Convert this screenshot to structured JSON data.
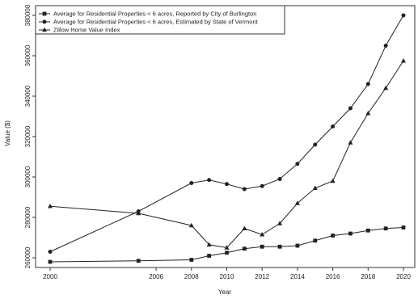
{
  "chart_data": {
    "type": "line",
    "title": "",
    "xlabel": "Year",
    "ylabel": "Value ($)",
    "xlim": [
      2000,
      2020
    ],
    "ylim": [
      260000,
      380000
    ],
    "x_ticks": [
      "2000",
      "2006",
      "2008",
      "2010",
      "2012",
      "2014",
      "2016",
      "2018",
      "2020"
    ],
    "x_tick_values": [
      2000,
      2006,
      2008,
      2010,
      2012,
      2014,
      2016,
      2018,
      2020
    ],
    "y_ticks": [
      "260000",
      "280000",
      "300000",
      "320000",
      "340000",
      "360000",
      "380000"
    ],
    "y_tick_values": [
      260000,
      280000,
      300000,
      320000,
      340000,
      360000,
      380000
    ],
    "grid": false,
    "legend_position": "top-left",
    "series": [
      {
        "name": "Average for Residential Properties < 6 acres, Reported by City of Burlington",
        "marker": "square",
        "color": "#222222",
        "x": [
          2000,
          2005,
          2008,
          2009,
          2010,
          2011,
          2012,
          2013,
          2014,
          2015,
          2016,
          2017,
          2018,
          2019,
          2020
        ],
        "y": [
          258000,
          258500,
          259000,
          261000,
          262500,
          264500,
          265500,
          265500,
          266000,
          268500,
          271000,
          272000,
          273500,
          274500,
          275000
        ]
      },
      {
        "name": "Average for Residential Properties < 6 acres, Estimated by State of Vermont",
        "marker": "circle",
        "color": "#222222",
        "x": [
          2000,
          2005,
          2008,
          2009,
          2010,
          2011,
          2012,
          2013,
          2014,
          2015,
          2016,
          2017,
          2018,
          2019,
          2020
        ],
        "y": [
          263000,
          283000,
          297000,
          298500,
          296500,
          294000,
          295500,
          299000,
          306500,
          316000,
          325000,
          334000,
          346000,
          365000,
          380000
        ]
      },
      {
        "name": "Zillow Home Value Index",
        "marker": "triangle",
        "color": "#222222",
        "x": [
          2000,
          2005,
          2008,
          2009,
          2010,
          2011,
          2012,
          2013,
          2014,
          2015,
          2016,
          2017,
          2018,
          2019,
          2020
        ],
        "y": [
          285500,
          282000,
          276000,
          266500,
          265000,
          274500,
          271500,
          277000,
          287000,
          294500,
          298000,
          317000,
          331500,
          344000,
          357500
        ]
      }
    ]
  }
}
